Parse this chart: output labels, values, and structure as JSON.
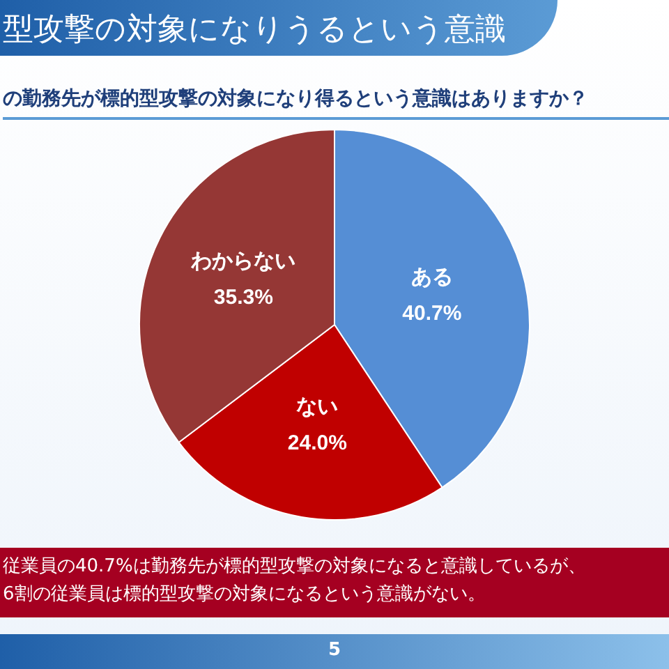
{
  "chart_data": {
    "type": "pie",
    "title": "型攻撃の対象になりうるという意識",
    "subtitle": "の勤務先が標的型攻撃の対象になり得るという意識はありますか？",
    "categories": [
      "ある",
      "ない",
      "わからない"
    ],
    "values": [
      40.7,
      24.0,
      35.3
    ],
    "value_labels": [
      "40.7%",
      "24.0%",
      "35.3%"
    ],
    "colors": [
      "#558ed5",
      "#c00000",
      "#953735"
    ],
    "annotations": [
      "従業員の40.7%は勤務先が標的型攻撃の対象になると意識しているが、",
      "6割の従業員は標的型攻撃の対象になるという意識がない。",
      "5"
    ]
  }
}
